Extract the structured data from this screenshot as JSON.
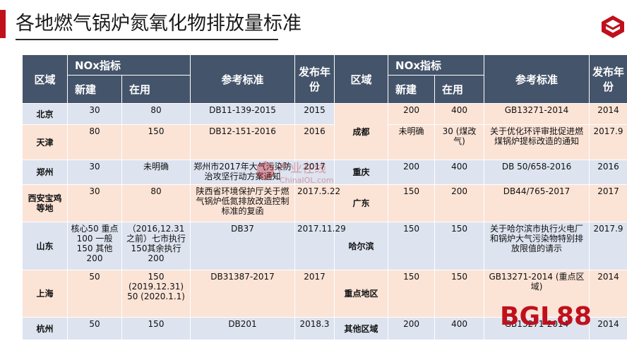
{
  "title": "各地燃气锅炉氮氧化物排放量标准",
  "header": {
    "region": "区域",
    "nox": "NOx指标",
    "new": "新建",
    "existing": "在用",
    "standard": "参考标准",
    "year": "发布年份"
  },
  "left_rows": [
    {
      "region": "北京",
      "new": "30",
      "existing": "80",
      "standard": "DB11-139-2015",
      "year": "2015"
    },
    {
      "region": "天津",
      "new": "80",
      "existing": "150",
      "standard": "DB12-151-2016",
      "year": "2016"
    },
    {
      "region": "郑州",
      "new": "30",
      "existing": "未明确",
      "standard": "郑州市2017年大气污染防治攻坚行动方案通知",
      "year": "2017"
    },
    {
      "region": "西安宝鸡等地",
      "new": "30",
      "existing": "80",
      "standard": "陕西省环境保护厅关于燃气锅炉低氮排放改造控制标准的复函",
      "year": "2017.5.22"
    },
    {
      "region": "山东",
      "new": "核心50 重点100 一般150 其他200",
      "existing": "（2016,12.31之前）七市执行150其余执行200",
      "standard": "DB37",
      "year": "2017.11.29"
    },
    {
      "region": "上海",
      "new": "50",
      "existing": "150 (2019.12.31) 50 (2020.1.1)",
      "standard": "DB31387-2017",
      "year": "2017"
    },
    {
      "region": "杭州",
      "new": "50",
      "existing": "150",
      "standard": "DB201",
      "year": "2018.3"
    }
  ],
  "right_rows": [
    {
      "region": "成都",
      "new": "200",
      "existing": "400",
      "standard": "GB13271-2014",
      "year": "2014"
    },
    {
      "region": "",
      "new": "未明确",
      "existing": "30 (煤改气)",
      "standard": "关于优化环评审批促进燃煤锅炉提标改造的通知",
      "year": "2017.9"
    },
    {
      "region": "重庆",
      "new": "200",
      "existing": "400",
      "standard": "DB 50/658-2016",
      "year": "2016"
    },
    {
      "region": "广东",
      "new": "150",
      "existing": "200",
      "standard": "DB44/765-2017",
      "year": "2017"
    },
    {
      "region": "哈尔滨",
      "new": "150",
      "existing": "150",
      "standard": "关于哈尔滨市执行火电厂和锅炉大气污染物特别排放限值的请示",
      "year": "2017.9"
    },
    {
      "region": "重点地区",
      "new": "150",
      "existing": "150",
      "standard": "GB13271-2014 (重点区域)",
      "year": "2014"
    },
    {
      "region": "其他区域",
      "new": "200",
      "existing": "400",
      "standard": "GB13271-2014",
      "year": "2014"
    }
  ],
  "watermark": {
    "cn": "产业在线",
    "en": "ChinaIOL.com"
  },
  "bgl_logo": "BGL88",
  "colors": {
    "accent": "#c0101c",
    "header": "#44546a",
    "row_blue": "#dde3ef",
    "row_pink": "#fbe3d6"
  }
}
